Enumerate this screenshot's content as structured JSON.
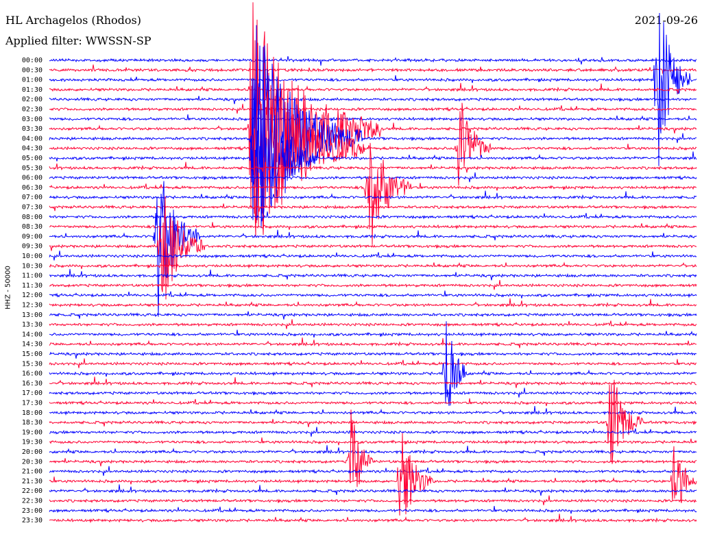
{
  "header": {
    "station": "HL Archagelos (Rhodos)",
    "filter": "Applied filter: WWSSN-SP",
    "date": "2021-09-26",
    "channel": "HHZ - 50000"
  },
  "colors": {
    "even_line": "#0000ff",
    "odd_line": "#ff0033",
    "text": "#000000"
  },
  "chart_data": {
    "type": "helicorder",
    "title": "HL Archagelos (Rhodos)",
    "subtitle": "Applied filter: WWSSN-SP",
    "ylabel": "HHZ - 50000",
    "y_ticks": [
      "00:00",
      "00:30",
      "01:00",
      "01:30",
      "02:00",
      "02:30",
      "03:00",
      "03:30",
      "04:00",
      "04:30",
      "05:00",
      "05:30",
      "06:00",
      "06:30",
      "07:00",
      "07:30",
      "08:00",
      "08:30",
      "09:00",
      "09:30",
      "10:00",
      "10:30",
      "11:00",
      "11:30",
      "12:00",
      "12:30",
      "13:00",
      "13:30",
      "14:00",
      "14:30",
      "15:00",
      "15:30",
      "16:00",
      "16:30",
      "17:00",
      "17:30",
      "18:00",
      "18:30",
      "19:00",
      "19:30",
      "20:00",
      "20:30",
      "21:00",
      "21:30",
      "22:00",
      "22:30",
      "23:00",
      "23:30"
    ],
    "minutes_per_line": 30,
    "line_colors": [
      "#0000ff",
      "#ff0033"
    ],
    "events": [
      {
        "line": "03:30",
        "minute": 9.4,
        "amplitude": 1.0,
        "duration_min": 6
      },
      {
        "line": "04:00",
        "minute": 9.5,
        "amplitude": 1.0,
        "duration_min": 5
      },
      {
        "line": "04:30",
        "minute": 9.6,
        "amplitude": 0.9,
        "duration_min": 5
      },
      {
        "line": "05:00",
        "minute": 9.5,
        "amplitude": 0.8,
        "duration_min": 3
      },
      {
        "line": "06:30",
        "minute": 14.8,
        "amplitude": 0.6,
        "duration_min": 2
      },
      {
        "line": "09:00",
        "minute": 5.0,
        "amplitude": 0.7,
        "duration_min": 2
      },
      {
        "line": "09:30",
        "minute": 5.2,
        "amplitude": 0.6,
        "duration_min": 2
      },
      {
        "line": "04:30",
        "minute": 19.0,
        "amplitude": 0.5,
        "duration_min": 1.5
      },
      {
        "line": "01:00",
        "minute": 28.2,
        "amplitude": 0.8,
        "duration_min": 1.5
      },
      {
        "line": "18:30",
        "minute": 26.0,
        "amplitude": 0.5,
        "duration_min": 1.5
      },
      {
        "line": "16:00",
        "minute": 18.4,
        "amplitude": 0.6,
        "duration_min": 1
      },
      {
        "line": "21:30",
        "minute": 16.3,
        "amplitude": 0.5,
        "duration_min": 1.5
      },
      {
        "line": "21:30",
        "minute": 29.0,
        "amplitude": 0.4,
        "duration_min": 1
      },
      {
        "line": "20:30",
        "minute": 14.0,
        "amplitude": 0.5,
        "duration_min": 1
      }
    ]
  }
}
